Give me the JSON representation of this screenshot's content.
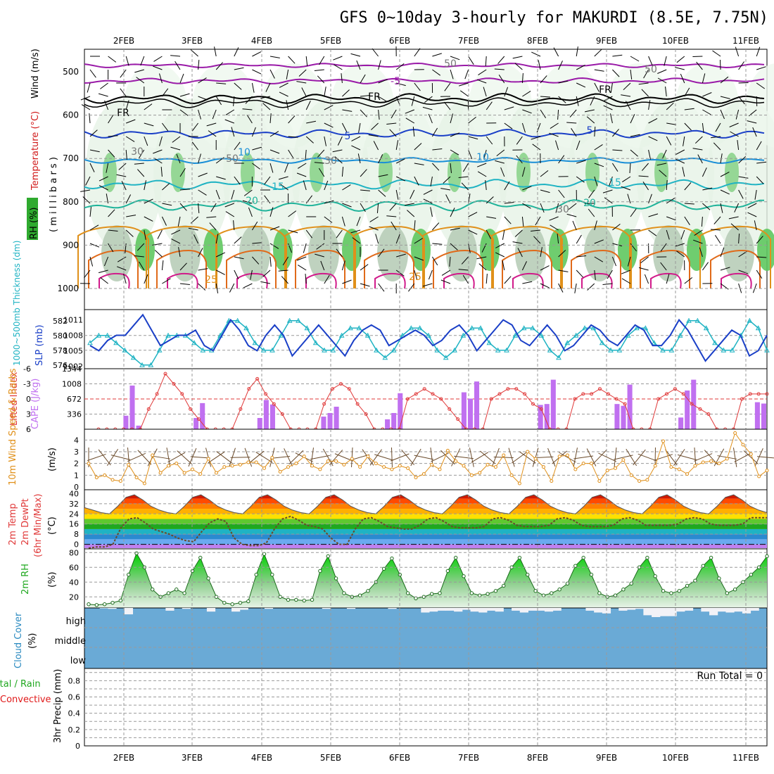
{
  "title": "GFS 0~10day 3-hourly for MAKURDI (8.5E, 7.75N)",
  "dates": [
    "2FEB",
    "3FEB",
    "4FEB",
    "5FEB",
    "6FEB",
    "7FEB",
    "8FEB",
    "9FEB",
    "10FEB",
    "11FEB"
  ],
  "colors": {
    "rh": "#2faa2f",
    "temperature": "#d11a1a",
    "wind": "#000000",
    "mb": "#000000",
    "thickness": "#1fb3c3",
    "slp": "#1a3fc7",
    "lifted": "#e03a3a",
    "cape": "#c070f0",
    "wind10": "#e0901a",
    "rh2m": "#1fa81f",
    "cloud": "#2a8ac0",
    "cloud_fill": "#6aaad6",
    "precip_total": "#1fa81f",
    "precip_conv": "#e01a1a"
  },
  "panels": {
    "upper": {
      "label_rh": "RH (%)",
      "label_temperature": "Temperature (°C)",
      "label_wind": "Wind (m/s)",
      "label_mb": "( m i l l i b a r s )",
      "yticks": [
        "500",
        "600",
        "700",
        "800",
        "900",
        "1000"
      ],
      "contour_labels": [
        "-5",
        "FR",
        "FR",
        "FR",
        "5",
        "5",
        "10",
        "10",
        "15",
        "15",
        "20",
        "20",
        "25",
        "25",
        "30",
        "50",
        "50",
        "30",
        "50",
        "30"
      ]
    },
    "thickness_slp": {
      "label_thickness": "1000~500mb Thickness (dm)",
      "label_slp": "SLP (mb)",
      "thickness_ticks": [
        "582",
        "580",
        "578",
        "576"
      ],
      "slp_ticks": [
        "1011",
        "1008",
        "1005",
        "1002"
      ]
    },
    "cape_li": {
      "label_li": "Lifted Index",
      "label_cape": "CAPE (J/kg)",
      "li_ticks": [
        "-6",
        "-3",
        "0",
        "3",
        "6"
      ],
      "cape_ticks": [
        "1344",
        "1008",
        "672",
        "336"
      ]
    },
    "wind10": {
      "label": "10m Wind Speed & Barbs",
      "unit": "(m/s)",
      "yticks": [
        "4",
        "3",
        "2",
        "1",
        "0"
      ]
    },
    "temp2m": {
      "label_a": "2m Temp",
      "label_b": "2m DewPt",
      "label_c": "(6hr Min/Max)",
      "unit": "(°C)",
      "yticks": [
        "40",
        "32",
        "24",
        "16",
        "8",
        "0"
      ]
    },
    "rh2m": {
      "label": "2m RH",
      "unit": "(%)",
      "yticks": [
        "80",
        "60",
        "40",
        "20"
      ]
    },
    "cloud": {
      "label": "Cloud Cover",
      "unit": "(%)",
      "levels": [
        "high",
        "middle",
        "low"
      ]
    },
    "precip": {
      "label_a": "Total / Rain",
      "label_b": "Convective",
      "label_c": "3hr Precip (mm)",
      "yticks": [
        "0.8",
        "0.6",
        "0.4",
        "0.2",
        "0"
      ],
      "run_total": "Run Total = 0"
    }
  },
  "chart_data": [
    {
      "type": "line",
      "name_in_legend": "SLP (mb)",
      "unit": "mb",
      "ylim": [
        1001.5,
        1013
      ],
      "values": [
        1006,
        1005,
        1007,
        1008,
        1008,
        1010,
        1012,
        1009,
        1006,
        1007,
        1008,
        1008,
        1009,
        1006,
        1005,
        1008,
        1011,
        1009,
        1006,
        1005,
        1008,
        1010,
        1008,
        1004,
        1006,
        1008,
        1010,
        1008,
        1006,
        1004,
        1007,
        1009,
        1010,
        1009,
        1006,
        1007,
        1008,
        1009,
        1008,
        1006,
        1007,
        1009,
        1010,
        1008,
        1005,
        1007,
        1009,
        1011,
        1010,
        1007,
        1006,
        1008,
        1010,
        1008,
        1005,
        1006,
        1008,
        1010,
        1009,
        1007,
        1006,
        1008,
        1010,
        1009,
        1006,
        1006,
        1008,
        1011,
        1009,
        1006,
        1003,
        1005,
        1007,
        1009,
        1008,
        1004,
        1005,
        1008
      ]
    },
    {
      "type": "line",
      "name_in_legend": "1000~500mb Thickness (dm)",
      "unit": "dm",
      "ylim": [
        575.5,
        583.5
      ],
      "values": [
        579,
        580,
        580,
        579,
        578,
        577,
        576,
        576,
        578,
        580,
        580,
        580,
        579,
        578,
        578,
        580,
        582,
        582,
        581,
        579,
        578,
        578,
        580,
        582,
        582,
        581,
        579,
        578,
        578,
        580,
        581,
        581,
        580,
        578,
        577,
        578,
        580,
        581,
        581,
        580,
        578,
        577,
        578,
        580,
        581,
        581,
        579,
        578,
        578,
        580,
        581,
        581,
        580,
        578,
        577,
        579,
        580,
        581,
        581,
        579,
        578,
        578,
        580,
        581,
        581,
        579,
        578,
        578,
        580,
        582,
        582,
        581,
        579,
        578,
        578,
        580,
        582,
        581,
        578
      ]
    },
    {
      "type": "line",
      "name_in_legend": "Lifted Index",
      "ylim_inverted": [
        6,
        -6
      ],
      "values": [
        6,
        6,
        6,
        6,
        6,
        6,
        2,
        -1,
        -5,
        -3,
        -1,
        2,
        4,
        6,
        6,
        6,
        6,
        2,
        -2,
        -4,
        -1,
        1,
        3,
        6,
        6,
        6,
        6,
        1,
        -2,
        -3,
        -2,
        1,
        3,
        6,
        6,
        6,
        6,
        0,
        -1,
        -2,
        -1,
        0,
        2,
        4,
        6,
        6,
        6,
        0,
        -1,
        -2,
        -2,
        -1,
        1,
        2,
        6,
        6,
        6,
        0,
        -1,
        -1,
        -2,
        -1,
        0,
        1,
        6,
        6,
        6,
        0,
        -1,
        -2,
        -1,
        1,
        2,
        3,
        6,
        6,
        6,
        0,
        -1,
        -1,
        -1
      ]
    },
    {
      "type": "bar",
      "name_in_legend": "CAPE (J/kg)",
      "unit": "J/kg",
      "ylim": [
        0,
        1344
      ],
      "values": [
        0,
        0,
        0,
        0,
        0,
        0,
        300,
        970,
        80,
        0,
        0,
        0,
        0,
        0,
        0,
        0,
        0,
        250,
        580,
        0,
        0,
        0,
        0,
        0,
        0,
        0,
        0,
        250,
        650,
        550,
        0,
        0,
        0,
        0,
        0,
        0,
        0,
        280,
        360,
        500,
        0,
        0,
        0,
        0,
        0,
        0,
        0,
        220,
        360,
        800,
        0,
        0,
        0,
        0,
        0,
        0,
        0,
        0,
        0,
        820,
        680,
        1060,
        0,
        0,
        0,
        0,
        0,
        0,
        0,
        0,
        0,
        540,
        560,
        1100,
        0,
        0,
        0,
        0,
        0,
        0,
        0,
        0,
        0,
        560,
        520,
        990,
        0,
        0,
        0,
        0,
        0,
        0,
        0,
        260,
        860,
        1100,
        0,
        0,
        0,
        0,
        0,
        0,
        0,
        0,
        0,
        600,
        570
      ]
    },
    {
      "type": "line",
      "name_in_legend": "10m Wind Speed",
      "unit": "m/s",
      "ylim": [
        0,
        4.8
      ],
      "values": [
        2.0,
        0.8,
        1.0,
        0.6,
        0.5,
        1.9,
        0.8,
        0.3,
        2.7,
        1.2,
        1.8,
        2.0,
        1.2,
        1.5,
        1.1,
        2.4,
        1.2,
        1.7,
        1.8,
        1.9,
        2.1,
        2.1,
        1.6,
        2.5,
        1.3,
        1.7,
        2.0,
        2.6,
        1.8,
        1.5,
        2.2,
        2.2,
        1.9,
        2.4,
        1.7,
        2.6,
        2.0,
        1.7,
        1.5,
        1.8,
        1.6,
        0.8,
        1.1,
        1.9,
        1.5,
        3.1,
        2.2,
        1.8,
        1.0,
        1.2,
        1.9,
        1.7,
        2.7,
        1.0,
        0.3,
        3.0,
        2.4,
        1.7,
        0.5,
        2.6,
        2.7,
        1.5,
        2.0,
        2.0,
        0.5,
        1.4,
        1.6,
        2.3,
        1.0,
        0.5,
        0.6,
        1.8,
        3.9,
        1.7,
        1.5,
        1.1,
        1.8,
        2.1,
        2.2,
        2.0,
        2.4,
        4.6,
        3.6,
        2.8,
        0.9,
        1.4
      ]
    },
    {
      "type": "area",
      "name_in_legend": "2m Temp",
      "unit": "°C",
      "ylim": [
        -3,
        43
      ],
      "values": [
        29,
        27,
        25,
        24,
        30,
        37,
        39,
        35,
        30,
        27,
        25,
        24,
        30,
        37,
        39,
        35,
        30,
        27,
        25,
        24,
        30,
        37,
        39,
        35,
        30,
        27,
        25,
        24,
        30,
        37,
        39,
        35,
        30,
        27,
        25,
        24,
        30,
        37,
        39,
        35,
        30,
        27,
        25,
        24,
        30,
        37,
        39,
        35,
        30,
        27,
        25,
        24,
        30,
        37,
        39,
        35,
        30,
        27,
        25,
        24,
        30,
        37,
        39,
        35,
        30,
        27,
        25,
        24,
        30,
        37,
        39,
        35,
        30,
        27,
        25,
        24,
        30,
        37,
        39,
        35,
        30,
        27,
        25
      ]
    },
    {
      "type": "line",
      "name_in_legend": "2m DewPt",
      "unit": "°C",
      "ylim": [
        -3,
        43
      ],
      "values": [
        -3,
        -2,
        -2,
        0,
        13,
        20,
        21,
        17,
        12,
        10,
        8,
        5,
        3,
        2,
        10,
        17,
        20,
        18,
        5,
        0,
        -1,
        -1,
        1,
        12,
        20,
        22,
        19,
        15,
        14,
        12,
        5,
        0,
        0,
        12,
        20,
        21,
        18,
        14,
        13,
        12,
        12,
        15,
        20,
        21,
        18,
        14,
        13,
        13,
        13,
        14,
        20,
        21,
        19,
        15,
        14,
        14,
        14,
        15,
        20,
        21,
        19,
        15,
        14,
        14,
        14,
        15,
        20,
        21,
        19,
        15,
        15,
        15,
        15,
        16,
        20,
        21,
        20,
        16,
        15,
        15,
        15,
        16,
        21,
        21,
        21
      ]
    },
    {
      "type": "area",
      "name_in_legend": "2m RH",
      "unit": "%",
      "ylim": [
        5,
        85
      ],
      "values": [
        10,
        9,
        10,
        12,
        15,
        50,
        79,
        60,
        30,
        20,
        25,
        30,
        25,
        55,
        73,
        45,
        20,
        12,
        10,
        12,
        14,
        50,
        78,
        50,
        20,
        16,
        16,
        15,
        16,
        55,
        75,
        45,
        25,
        20,
        22,
        28,
        40,
        58,
        72,
        50,
        25,
        18,
        20,
        24,
        25,
        55,
        73,
        48,
        25,
        22,
        24,
        28,
        35,
        60,
        73,
        50,
        28,
        22,
        25,
        30,
        38,
        62,
        73,
        50,
        25,
        20,
        22,
        30,
        38,
        60,
        73,
        48,
        28,
        25,
        28,
        35,
        42,
        62,
        73,
        45,
        25,
        30,
        40,
        50,
        60,
        75
      ]
    },
    {
      "type": "bar",
      "name_in_legend": "Cloud Cover high",
      "unit": "%",
      "ylim": [
        0,
        100
      ],
      "values": [
        100,
        98,
        95,
        100,
        65,
        100,
        100,
        100,
        100,
        85,
        100,
        95,
        100,
        100,
        80,
        100,
        100,
        80,
        90,
        100,
        100,
        95,
        100,
        100,
        100,
        100,
        100,
        100,
        95,
        100,
        100,
        95,
        100,
        100,
        100,
        100,
        95,
        100,
        100,
        100,
        75,
        80,
        85,
        85,
        80,
        90,
        80,
        75,
        85,
        80,
        100,
        85,
        75,
        85,
        85,
        80,
        85,
        100,
        100,
        100,
        85,
        75,
        70,
        100,
        85,
        90,
        95,
        60,
        50,
        55,
        55,
        80,
        85,
        100,
        80,
        60,
        80,
        75,
        80,
        70,
        85,
        100
      ]
    },
    {
      "type": "bar",
      "name_in_legend": "3hr Precip (mm)",
      "unit": "mm",
      "ylim": [
        0,
        0.95
      ],
      "values": [
        0,
        0,
        0,
        0,
        0,
        0,
        0,
        0,
        0,
        0,
        0,
        0,
        0,
        0,
        0,
        0,
        0,
        0,
        0,
        0,
        0,
        0,
        0,
        0,
        0,
        0,
        0,
        0,
        0,
        0,
        0,
        0,
        0,
        0,
        0,
        0,
        0,
        0,
        0,
        0,
        0,
        0,
        0,
        0,
        0,
        0,
        0,
        0,
        0,
        0,
        0,
        0,
        0,
        0,
        0,
        0,
        0,
        0,
        0,
        0,
        0,
        0,
        0,
        0,
        0,
        0,
        0,
        0,
        0,
        0,
        0,
        0,
        0,
        0,
        0,
        0,
        0,
        0,
        0,
        0,
        0,
        0,
        0
      ]
    }
  ]
}
